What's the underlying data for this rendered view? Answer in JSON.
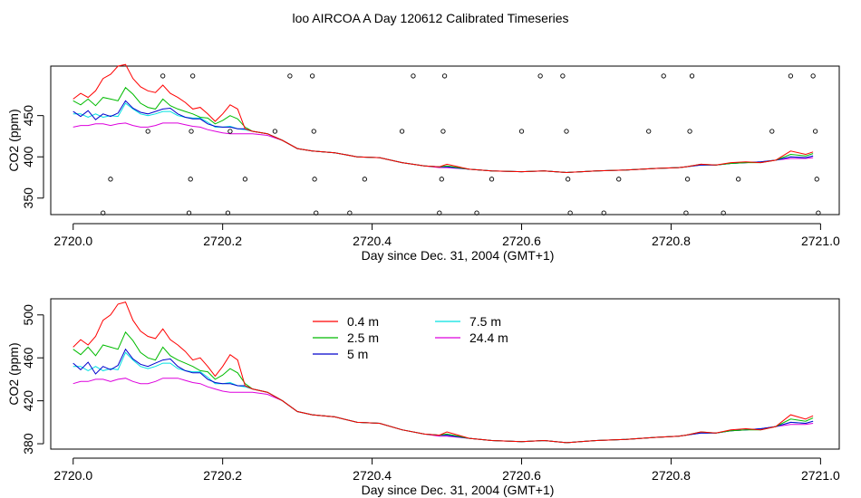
{
  "figure": {
    "title": "loo AIRCOA A  Day 120612  Calibrated Timeseries"
  },
  "colors": {
    "0.4 m": "#ff0000",
    "2.5 m": "#00bb00",
    "5 m": "#0000cc",
    "7.5 m": "#00e0e0",
    "24.4 m": "#dd00dd"
  },
  "chart_data": [
    {
      "type": "line",
      "title": "",
      "xlabel": "Day since Dec. 31, 2004 (GMT+1)",
      "ylabel": "CO2 (ppm)",
      "xlim": [
        2719.97,
        2721.025
      ],
      "ylim": [
        330,
        510
      ],
      "xticks": [
        "2720.0",
        "2720.2",
        "2720.4",
        "2720.6",
        "2720.8",
        "2721.0"
      ],
      "yticks": [
        "350",
        "400",
        "450"
      ],
      "grid": false,
      "legend": "none",
      "x": [
        2720.0,
        2720.01,
        2720.02,
        2720.03,
        2720.04,
        2720.05,
        2720.06,
        2720.07,
        2720.08,
        2720.09,
        2720.1,
        2720.11,
        2720.12,
        2720.13,
        2720.14,
        2720.15,
        2720.16,
        2720.17,
        2720.18,
        2720.19,
        2720.2,
        2720.21,
        2720.22,
        2720.23,
        2720.24,
        2720.26,
        2720.28,
        2720.3,
        2720.32,
        2720.35,
        2720.38,
        2720.41,
        2720.44,
        2720.47,
        2720.49,
        2720.5,
        2720.53,
        2720.56,
        2720.6,
        2720.63,
        2720.66,
        2720.7,
        2720.74,
        2720.78,
        2720.81,
        2720.82,
        2720.84,
        2720.86,
        2720.88,
        2720.9,
        2720.92,
        2720.94,
        2720.96,
        2720.98,
        2720.99
      ],
      "series": [
        {
          "name": "0.4 m",
          "values": [
            470,
            477,
            472,
            480,
            495,
            500,
            510,
            512,
            495,
            485,
            480,
            478,
            487,
            477,
            472,
            466,
            458,
            460,
            452,
            443,
            452,
            463,
            458,
            434,
            431,
            428,
            420,
            410,
            407,
            405,
            400,
            399,
            393,
            389,
            388,
            391,
            385,
            383,
            382,
            383,
            381,
            383,
            384,
            386,
            387,
            388,
            391,
            390,
            393,
            394,
            393,
            396,
            407,
            403,
            406
          ]
        },
        {
          "name": "2.5 m",
          "values": [
            468,
            463,
            470,
            462,
            472,
            470,
            468,
            484,
            476,
            465,
            460,
            458,
            470,
            462,
            458,
            455,
            452,
            448,
            447,
            440,
            444,
            450,
            446,
            436,
            431,
            428,
            420,
            410,
            407,
            405,
            400,
            399,
            393,
            389,
            388,
            389,
            385,
            383,
            382,
            383,
            381,
            383,
            384,
            386,
            387,
            388,
            391,
            390,
            392,
            393,
            393,
            396,
            403,
            401,
            404
          ]
        },
        {
          "name": "5 m",
          "values": [
            455,
            449,
            456,
            445,
            452,
            449,
            453,
            468,
            459,
            454,
            452,
            455,
            458,
            459,
            452,
            448,
            446,
            446,
            440,
            437,
            436,
            436,
            434,
            434,
            431,
            428,
            420,
            410,
            407,
            405,
            400,
            399,
            393,
            389,
            388,
            388,
            385,
            383,
            382,
            383,
            381,
            383,
            384,
            386,
            387,
            388,
            390,
            390,
            392,
            393,
            394,
            396,
            400,
            399,
            401
          ]
        },
        {
          "name": "7.5 m",
          "values": [
            452,
            452,
            448,
            452,
            448,
            450,
            449,
            465,
            458,
            452,
            450,
            452,
            455,
            455,
            450,
            448,
            447,
            447,
            442,
            436,
            436,
            437,
            434,
            433,
            431,
            428,
            420,
            410,
            407,
            405,
            400,
            399,
            393,
            389,
            388,
            388,
            385,
            383,
            382,
            383,
            381,
            383,
            384,
            386,
            387,
            388,
            390,
            390,
            392,
            393,
            394,
            396,
            400,
            399,
            401
          ]
        },
        {
          "name": "24.4 m",
          "values": [
            436,
            438,
            438,
            440,
            440,
            438,
            440,
            441,
            438,
            436,
            436,
            438,
            441,
            441,
            441,
            439,
            437,
            436,
            433,
            431,
            429,
            428,
            428,
            428,
            428,
            426,
            420,
            410,
            407,
            405,
            400,
            399,
            393,
            389,
            387,
            387,
            385,
            383,
            382,
            383,
            381,
            383,
            384,
            386,
            387,
            388,
            390,
            390,
            392,
            393,
            394,
            396,
            398,
            398,
            399
          ]
        }
      ],
      "scatter_markers": {
        "name": "status flags",
        "points": [
          [
            2720.04,
            332
          ],
          [
            2720.05,
            373
          ],
          [
            2720.1,
            431
          ],
          [
            2720.12,
            498
          ],
          [
            2720.155,
            332
          ],
          [
            2720.157,
            373
          ],
          [
            2720.158,
            431
          ],
          [
            2720.16,
            498
          ],
          [
            2720.207,
            332
          ],
          [
            2720.21,
            431
          ],
          [
            2720.23,
            373
          ],
          [
            2720.27,
            431
          ],
          [
            2720.29,
            498
          ],
          [
            2720.32,
            498
          ],
          [
            2720.322,
            431
          ],
          [
            2720.323,
            373
          ],
          [
            2720.325,
            332
          ],
          [
            2720.37,
            332
          ],
          [
            2720.39,
            373
          ],
          [
            2720.44,
            431
          ],
          [
            2720.455,
            498
          ],
          [
            2720.49,
            332
          ],
          [
            2720.493,
            373
          ],
          [
            2720.495,
            431
          ],
          [
            2720.497,
            498
          ],
          [
            2720.54,
            332
          ],
          [
            2720.56,
            373
          ],
          [
            2720.6,
            431
          ],
          [
            2720.625,
            498
          ],
          [
            2720.655,
            498
          ],
          [
            2720.66,
            431
          ],
          [
            2720.662,
            373
          ],
          [
            2720.665,
            332
          ],
          [
            2720.71,
            332
          ],
          [
            2720.73,
            373
          ],
          [
            2720.77,
            431
          ],
          [
            2720.79,
            498
          ],
          [
            2720.82,
            332
          ],
          [
            2720.822,
            373
          ],
          [
            2720.825,
            431
          ],
          [
            2720.828,
            498
          ],
          [
            2720.87,
            332
          ],
          [
            2720.89,
            373
          ],
          [
            2720.935,
            431
          ],
          [
            2720.96,
            498
          ],
          [
            2720.99,
            498
          ],
          [
            2720.993,
            431
          ],
          [
            2720.995,
            373
          ],
          [
            2720.997,
            332
          ]
        ]
      }
    },
    {
      "type": "line",
      "title": "",
      "xlabel": "Day since Dec. 31, 2004 (GMT+1)",
      "ylabel": "CO2 (ppm)",
      "xlim": [
        2719.97,
        2721.025
      ],
      "ylim": [
        375,
        515
      ],
      "xticks": [
        "2720.0",
        "2720.2",
        "2720.4",
        "2720.6",
        "2720.8",
        "2721.0"
      ],
      "yticks": [
        "380",
        "420",
        "460",
        "500"
      ],
      "grid": false,
      "legend": "top-left",
      "x": [
        2720.0,
        2720.01,
        2720.02,
        2720.03,
        2720.04,
        2720.05,
        2720.06,
        2720.07,
        2720.08,
        2720.09,
        2720.1,
        2720.11,
        2720.12,
        2720.13,
        2720.14,
        2720.15,
        2720.16,
        2720.17,
        2720.18,
        2720.19,
        2720.2,
        2720.21,
        2720.22,
        2720.23,
        2720.24,
        2720.26,
        2720.28,
        2720.3,
        2720.32,
        2720.35,
        2720.38,
        2720.41,
        2720.44,
        2720.47,
        2720.49,
        2720.5,
        2720.53,
        2720.56,
        2720.6,
        2720.63,
        2720.66,
        2720.7,
        2720.74,
        2720.78,
        2720.81,
        2720.82,
        2720.84,
        2720.86,
        2720.88,
        2720.9,
        2720.92,
        2720.94,
        2720.96,
        2720.98,
        2720.99
      ],
      "series": [
        {
          "name": "0.4 m",
          "values": [
            470,
            477,
            472,
            480,
            495,
            500,
            510,
            512,
            495,
            485,
            480,
            478,
            487,
            477,
            472,
            466,
            458,
            460,
            452,
            443,
            452,
            463,
            458,
            434,
            431,
            428,
            420,
            410,
            407,
            405,
            400,
            399,
            393,
            389,
            388,
            391,
            385,
            383,
            382,
            383,
            381,
            383,
            384,
            386,
            387,
            388,
            391,
            390,
            393,
            394,
            393,
            396,
            407,
            403,
            406
          ]
        },
        {
          "name": "2.5 m",
          "values": [
            468,
            463,
            470,
            462,
            472,
            470,
            468,
            484,
            476,
            465,
            460,
            458,
            470,
            462,
            458,
            455,
            452,
            448,
            447,
            440,
            444,
            450,
            446,
            436,
            431,
            428,
            420,
            410,
            407,
            405,
            400,
            399,
            393,
            389,
            388,
            389,
            385,
            383,
            382,
            383,
            381,
            383,
            384,
            386,
            387,
            388,
            391,
            390,
            392,
            393,
            393,
            396,
            403,
            401,
            404
          ]
        },
        {
          "name": "5 m",
          "values": [
            455,
            449,
            456,
            445,
            452,
            449,
            453,
            468,
            459,
            454,
            452,
            455,
            458,
            459,
            452,
            448,
            446,
            446,
            440,
            437,
            436,
            436,
            434,
            434,
            431,
            428,
            420,
            410,
            407,
            405,
            400,
            399,
            393,
            389,
            388,
            388,
            385,
            383,
            382,
            383,
            381,
            383,
            384,
            386,
            387,
            388,
            390,
            390,
            392,
            393,
            394,
            396,
            400,
            399,
            401
          ]
        },
        {
          "name": "7.5 m",
          "values": [
            452,
            452,
            448,
            452,
            448,
            450,
            449,
            465,
            458,
            452,
            450,
            452,
            455,
            455,
            450,
            448,
            447,
            447,
            442,
            436,
            436,
            437,
            434,
            433,
            431,
            428,
            420,
            410,
            407,
            405,
            400,
            399,
            393,
            389,
            388,
            388,
            385,
            383,
            382,
            383,
            381,
            383,
            384,
            386,
            387,
            388,
            390,
            390,
            392,
            393,
            394,
            396,
            400,
            399,
            401
          ]
        },
        {
          "name": "24.4 m",
          "values": [
            436,
            438,
            438,
            440,
            440,
            438,
            440,
            441,
            438,
            436,
            436,
            438,
            441,
            441,
            441,
            439,
            437,
            436,
            433,
            431,
            429,
            428,
            428,
            428,
            428,
            426,
            420,
            410,
            407,
            405,
            400,
            399,
            393,
            389,
            387,
            387,
            385,
            383,
            382,
            383,
            381,
            383,
            384,
            386,
            387,
            388,
            390,
            390,
            392,
            393,
            394,
            396,
            398,
            398,
            399
          ]
        }
      ]
    }
  ]
}
